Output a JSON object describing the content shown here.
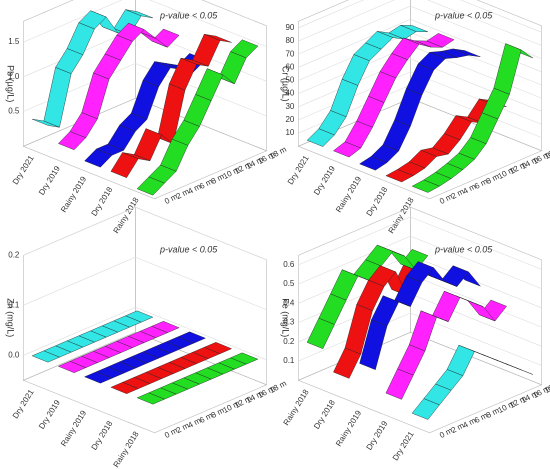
{
  "chart_data": [
    {
      "type": "ribbon3d",
      "annotation": "p-value < 0.05",
      "zlabel": "Pb (µg/L)",
      "zlim": [
        0,
        1.8
      ],
      "zticks": [
        0.5,
        {
          "value": 1,
          "label": "1.0"
        },
        1.5
      ],
      "depths": [
        "0 m",
        "2 m",
        "4 m",
        "6 m",
        "8 m",
        "10 m",
        "12 m",
        "14 m",
        "16 m",
        "18 m"
      ],
      "series": [
        {
          "name": "Dry 2021",
          "color": "#33e6e6",
          "values": [
            0.4,
            0.3,
            1.0,
            1.2,
            1.5,
            1.6,
            1.3,
            1.2,
            1.4,
            1.3
          ]
        },
        {
          "name": "Dry 2019",
          "color": "#ff22ff",
          "values": [
            0.2,
            0.3,
            0.5,
            1.0,
            1.2,
            1.4,
            1.5,
            1.3,
            1.1,
            1.2
          ]
        },
        {
          "name": "Rainy 2019",
          "color": "#1010e0",
          "values": [
            0.1,
            0.2,
            0.2,
            0.4,
            0.5,
            0.9,
            1.1,
            1.0,
            0.9,
            1.0
          ]
        },
        {
          "name": "Dry 2018",
          "color": "#ee1111",
          "values": [
            0.1,
            0.3,
            0.2,
            0.5,
            0.3,
            1.0,
            1.3,
            1.2,
            1.5,
            1.4
          ]
        },
        {
          "name": "Rainy 2018",
          "color": "#22dd22",
          "values": [
            0.0,
            0.1,
            0.2,
            0.5,
            0.7,
            1.0,
            1.3,
            1.1,
            1.4,
            1.5
          ]
        }
      ]
    },
    {
      "type": "ribbon3d",
      "annotation": "p-value < 0.05",
      "zlabel": "Cr (µg/L)",
      "zlim": [
        0,
        95
      ],
      "zticks": [
        10,
        20,
        30,
        40,
        50,
        60,
        70,
        80,
        90
      ],
      "depths": [
        "0 m",
        "2 m",
        "4 m",
        "6 m",
        "8 m",
        "10 m",
        "12 m",
        "14 m",
        "16 m",
        "18 m"
      ],
      "series": [
        {
          "name": "Dry 2021",
          "color": "#33e6e6",
          "values": [
            5,
            10,
            20,
            40,
            55,
            60,
            65,
            60,
            62,
            58
          ]
        },
        {
          "name": "Dry 2019",
          "color": "#ff22ff",
          "values": [
            5,
            8,
            20,
            35,
            50,
            60,
            68,
            62,
            58,
            60
          ]
        },
        {
          "name": "Rainy 2019",
          "color": "#1010e0",
          "values": [
            3,
            5,
            10,
            25,
            45,
            60,
            65,
            62,
            60,
            55
          ]
        },
        {
          "name": "Dry 2018",
          "color": "#ee1111",
          "values": [
            2,
            3,
            5,
            10,
            8,
            15,
            25,
            20,
            30,
            25
          ]
        },
        {
          "name": "Rainy 2018",
          "color": "#22dd22",
          "values": [
            2,
            3,
            5,
            8,
            12,
            20,
            35,
            50,
            80,
            70
          ]
        }
      ]
    },
    {
      "type": "ribbon3d",
      "annotation": "p-value < 0.05",
      "zlabel": "Zn (mg/L)",
      "zlim": [
        -0.05,
        0.2
      ],
      "zticks": [
        {
          "value": 0,
          "label": "0.0"
        },
        0.1,
        0.2
      ],
      "depths": [
        "0 m",
        "2 m",
        "4 m",
        "6 m",
        "8 m",
        "10 m",
        "12 m",
        "14 m",
        "16 m",
        "18 m"
      ],
      "series": [
        {
          "name": "Dry 2021",
          "color": "#33e6e6",
          "values": [
            0,
            0,
            0,
            0,
            0,
            0,
            0,
            0,
            0,
            0
          ]
        },
        {
          "name": "Dry 2019",
          "color": "#ff22ff",
          "values": [
            0,
            0,
            0,
            0,
            0,
            0,
            0,
            0,
            0,
            0
          ]
        },
        {
          "name": "Rainy 2019",
          "color": "#1010e0",
          "values": [
            0,
            0,
            0,
            0,
            0,
            0,
            0,
            0,
            0,
            0
          ]
        },
        {
          "name": "Dry 2018",
          "color": "#ee1111",
          "values": [
            0,
            0,
            0,
            0,
            0,
            0,
            0,
            0,
            0,
            0
          ]
        },
        {
          "name": "Rainy 2018",
          "color": "#22dd22",
          "values": [
            0,
            0,
            0,
            0,
            0,
            0,
            0,
            0,
            0,
            0
          ]
        }
      ]
    },
    {
      "type": "ribbon3d",
      "annotation": "p-value < 0.05",
      "zlabel": "Fe (mg/L)",
      "zlim": [
        0,
        0.65
      ],
      "zticks": [
        0.1,
        0.2,
        0.3,
        0.4,
        0.5,
        0.6
      ],
      "depths": [
        "0 m",
        "2 m",
        "4 m",
        "6 m",
        "8 m",
        "10 m",
        "12 m",
        "14 m",
        "16 m",
        "18 m"
      ],
      "series": [
        {
          "name": "Rainy 2018",
          "color": "#22dd22",
          "values": [
            0.2,
            0.3,
            0.4,
            0.5,
            0.45,
            0.5,
            0.55,
            0.5,
            0.4,
            0.45
          ]
        },
        {
          "name": "Dry 2018",
          "color": "#ee1111",
          "values": [
            0.1,
            0.2,
            0.4,
            0.5,
            0.55,
            0.4,
            0.5,
            0.45,
            0.4,
            0.35
          ]
        },
        {
          "name": "Rainy 2019",
          "color": "#1010e0",
          "values": [
            0.2,
            0.4,
            0.5,
            0.45,
            0.55,
            0.6,
            0.5,
            0.45,
            0.5,
            0.4
          ]
        },
        {
          "name": "Dry 2019",
          "color": "#ff22ff",
          "values": [
            0.1,
            0.2,
            0.3,
            0.45,
            0.4,
            0.5,
            0.45,
            0.4,
            0.3,
            0.35
          ]
        },
        {
          "name": "Dry 2021",
          "color": "#33e6e6",
          "values": [
            0.05,
            0.1,
            0.15,
            0.2,
            0.3,
            0.25,
            0.2,
            0.15,
            0.1,
            0.05
          ]
        }
      ]
    }
  ]
}
